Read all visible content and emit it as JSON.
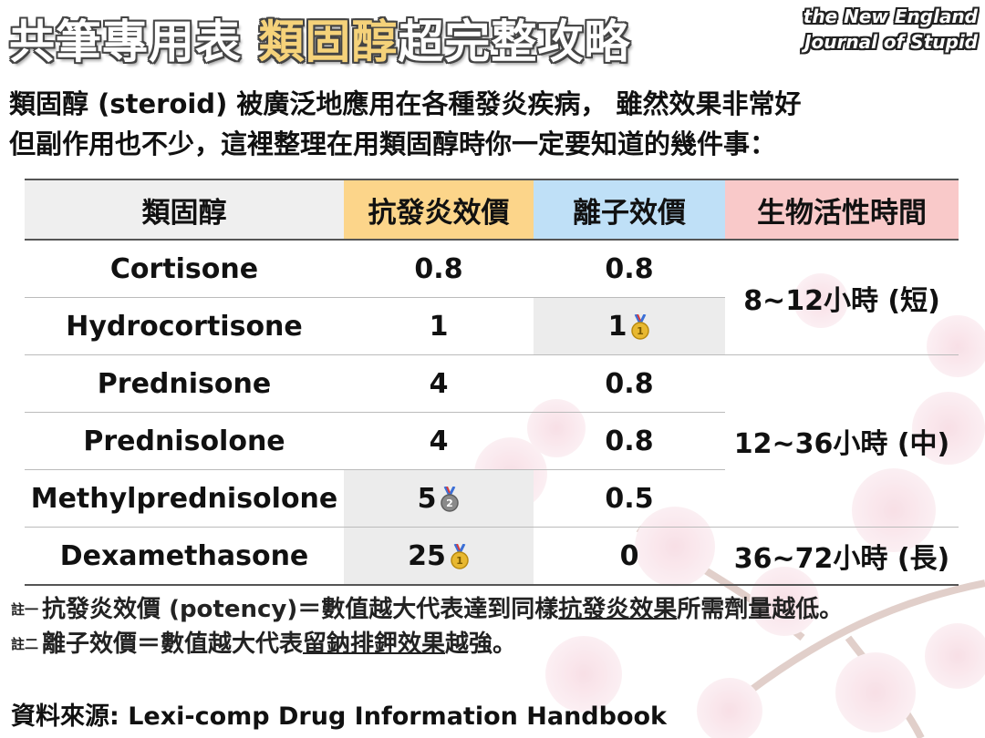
{
  "title": {
    "prefix": "共筆專用表 ",
    "highlight": "類固醇",
    "suffix": "超完整攻略"
  },
  "logo": {
    "line1": "the New England",
    "line2": "Journal of Stupid"
  },
  "intro": {
    "line1": "類固醇 (steroid) 被廣泛地應用在各種發炎疾病， 雖然效果非常好",
    "line2": "但副作用也不少，這裡整理在用類固醇時你一定要知道的幾件事："
  },
  "table": {
    "headers": [
      "類固醇",
      "抗發炎效價",
      "離子效價",
      "生物活性時間"
    ],
    "rows": [
      {
        "name": "Cortisone",
        "anti": "0.8",
        "ion": "0.8"
      },
      {
        "name": "Hydrocortisone",
        "anti": "1",
        "ion": "1"
      },
      {
        "name": "Prednisone",
        "anti": "4",
        "ion": "0.8"
      },
      {
        "name": "Prednisolone",
        "anti": "4",
        "ion": "0.8"
      },
      {
        "name": "Methylprednisolone",
        "anti": "5",
        "ion": "0.5"
      },
      {
        "name": "Dexamethasone",
        "anti": "25",
        "ion": "0"
      }
    ],
    "bio_groups": [
      "8~12小時 (短)",
      "12~36小時 (中)",
      "36~72小時 (長)"
    ],
    "medals": {
      "gold": "1",
      "silver": "2",
      "gold_color": "#e8b830",
      "silver_color": "#8a8a8a"
    }
  },
  "notes": {
    "note1": {
      "tag": "註一",
      "a": "抗發炎效價 (potency)＝數值越大代表達到同樣",
      "u": "抗發炎效果",
      "b": "所需劑量越低。"
    },
    "note2": {
      "tag": "註二",
      "a": "離子效價＝數值越大代表",
      "u": "留鈉排鉀效果",
      "b": "越強。"
    }
  },
  "source": "資料來源: Lexi-comp Drug Information Handbook"
}
